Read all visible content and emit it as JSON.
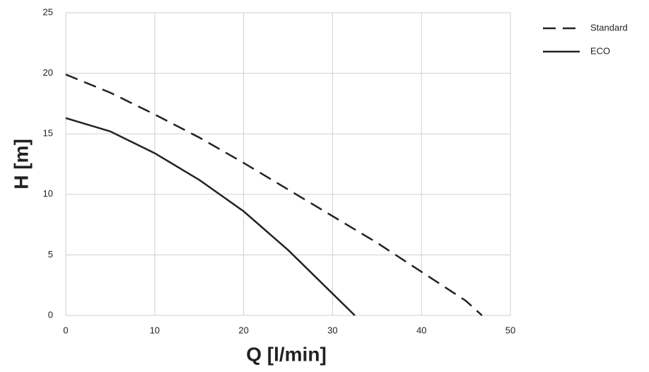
{
  "chart_data": {
    "type": "line",
    "xlabel": "Q [l/min]",
    "ylabel": "H [m]",
    "xlim": [
      0,
      50
    ],
    "xticks": [
      0,
      10,
      20,
      30,
      40,
      50
    ],
    "ylim": [
      0,
      25
    ],
    "yticks": [
      0,
      5,
      10,
      15,
      20,
      25
    ],
    "grid": true,
    "legend": "right",
    "series": [
      {
        "name": "Standard",
        "color": "#222222",
        "linestyle": "dashed",
        "x": [
          0,
          5,
          10,
          15,
          20,
          25,
          30,
          35,
          40,
          45,
          46.8
        ],
        "values": [
          19.9,
          18.4,
          16.6,
          14.7,
          12.6,
          10.4,
          8.2,
          6.0,
          3.6,
          1.2,
          0
        ]
      },
      {
        "name": "ECO",
        "color": "#222222",
        "linestyle": "solid",
        "x": [
          0,
          5,
          10,
          15,
          20,
          25,
          30,
          32.5
        ],
        "values": [
          16.3,
          15.2,
          13.4,
          11.2,
          8.6,
          5.4,
          1.8,
          0
        ]
      }
    ]
  }
}
